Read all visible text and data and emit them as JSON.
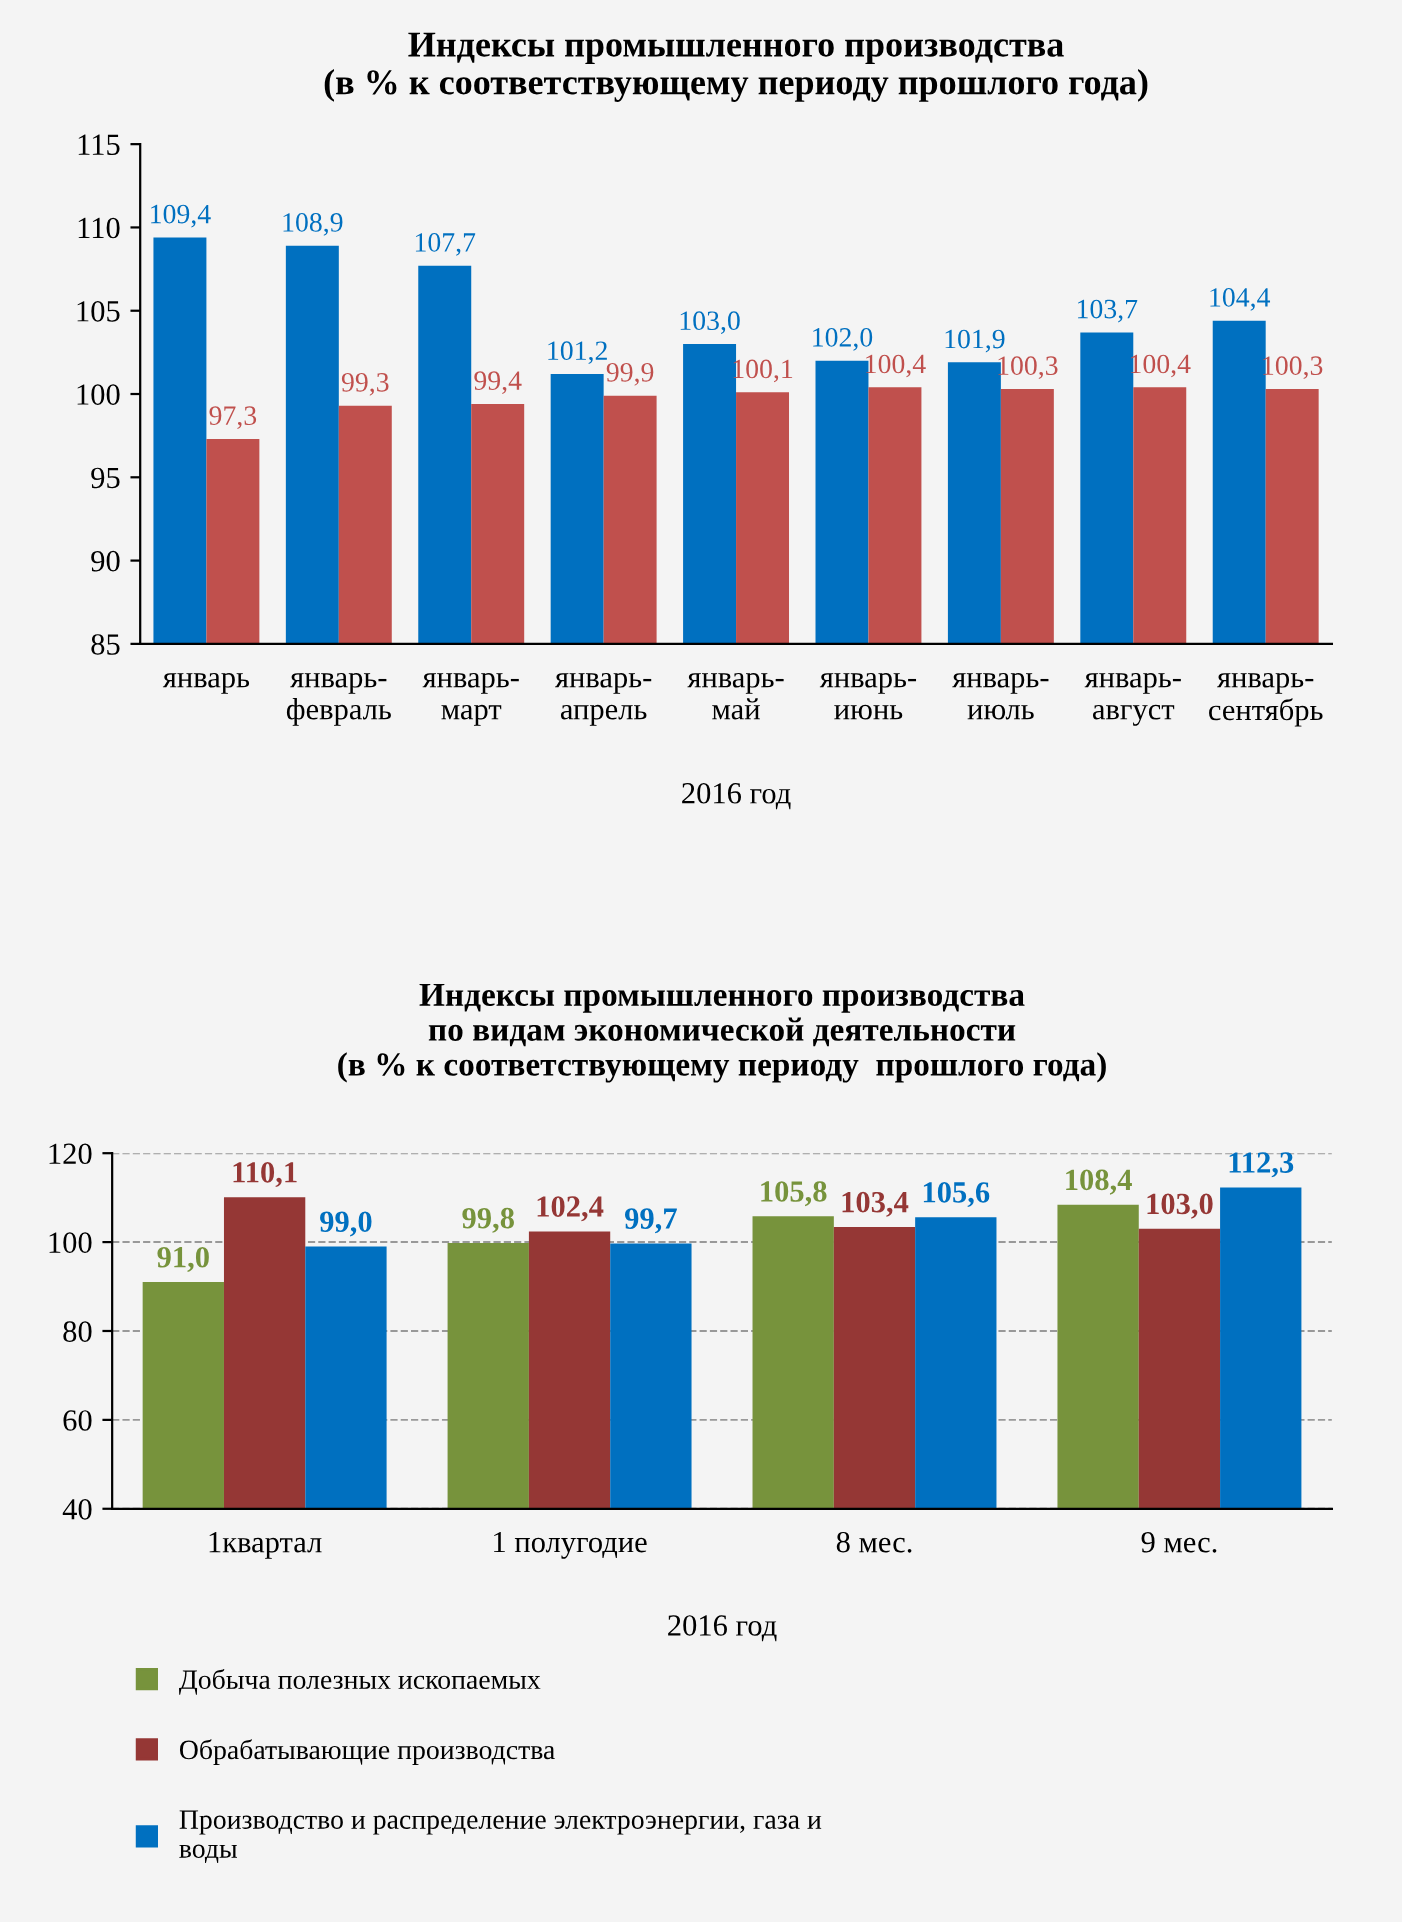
{
  "chart_data": [
    {
      "type": "bar",
      "title": "Индексы промышленного производства\n(в % к соответствующему периоду прошлого года)",
      "xlabel": "2016 год",
      "categories": [
        "январь",
        "январь-\nфевраль",
        "январь-\nмарт",
        "январь-\nапрель",
        "январь-\nмай",
        "январь-\nиюнь",
        "январь-\nиюль",
        "январь-\nавгуст",
        "январь-\nсентябрь"
      ],
      "series": [
        {
          "color": "#0070c0",
          "values": [
            109.4,
            108.9,
            107.7,
            101.2,
            103.0,
            102.0,
            101.9,
            103.7,
            104.4
          ],
          "value_labels": [
            "109,4",
            "108,9",
            "107,7",
            "101,2",
            "103,0",
            "102,0",
            "101,9",
            "103,7",
            "104,4"
          ]
        },
        {
          "color": "#c0504d",
          "values": [
            97.3,
            99.3,
            99.4,
            99.9,
            100.1,
            100.4,
            100.3,
            100.4,
            100.3
          ],
          "value_labels": [
            "97,3",
            "99,3",
            "99,4",
            "99,9",
            "100,1",
            "100,4",
            "100,3",
            "100,4",
            "100,3"
          ]
        }
      ],
      "ylim": [
        85,
        115
      ],
      "yticks": [
        85,
        90,
        95,
        100,
        105,
        110,
        115
      ],
      "grid": false,
      "legend": false
    },
    {
      "type": "bar",
      "title": "Индексы промышленного производства\nпо видам экономической деятельности\n(в % к соответствующему периоду  прошлого года)",
      "xlabel": "2016 год",
      "categories": [
        "1квартал",
        "1 полугодие",
        "8 мес.",
        "9 мес."
      ],
      "series": [
        {
          "name": "Добыча полезных ископаемых",
          "color": "#77933c",
          "values": [
            91.0,
            99.8,
            105.8,
            108.4
          ],
          "value_labels": [
            "91,0",
            "99,8",
            "105,8",
            "108,4"
          ]
        },
        {
          "name": "Обрабатывающие производства",
          "color": "#953735",
          "values": [
            110.1,
            102.4,
            103.4,
            103.0
          ],
          "value_labels": [
            "110,1",
            "102,4",
            "103,4",
            "103,0"
          ]
        },
        {
          "name": "Производство и распределение электроэнергии, газа и\nводы",
          "color": "#0070c0",
          "values": [
            99.0,
            99.7,
            105.6,
            112.3
          ],
          "value_labels": [
            "99,0",
            "99,7",
            "105,6",
            "112,3"
          ]
        }
      ],
      "ylim": [
        40,
        120
      ],
      "yticks": [
        40,
        60,
        80,
        100,
        120
      ],
      "grid": "y",
      "legend": "bottom"
    }
  ]
}
